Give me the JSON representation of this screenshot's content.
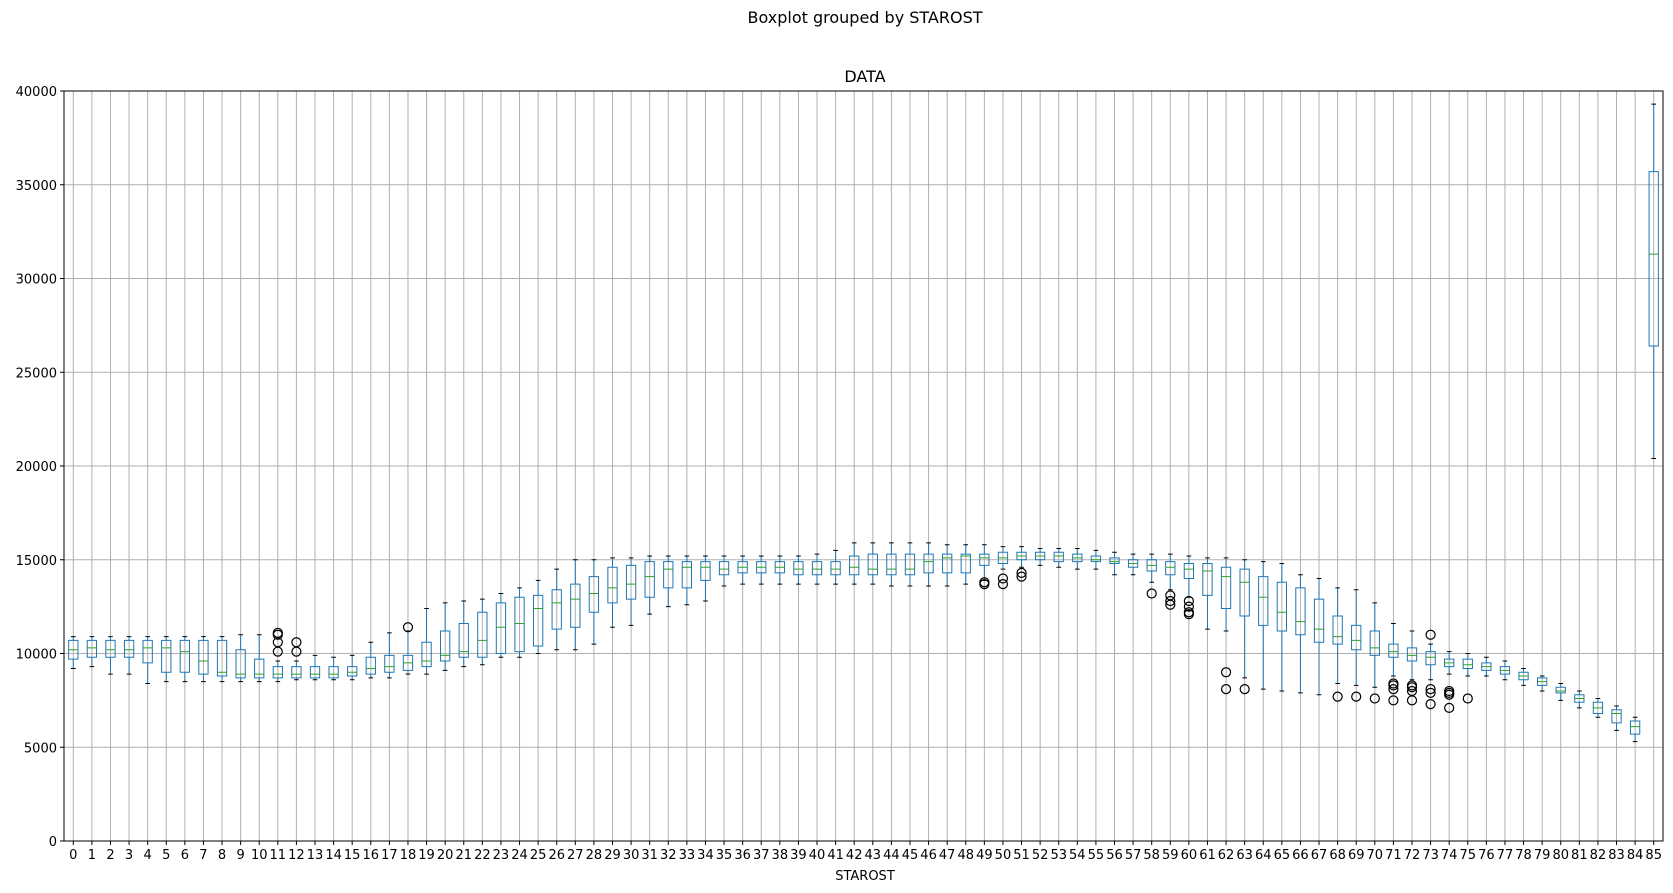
{
  "chart_data": {
    "type": "boxplot",
    "suptitle": "Boxplot grouped by STAROST",
    "title": "DATA",
    "xlabel": "STAROST",
    "ylabel": "",
    "ylim": [
      0,
      40000
    ],
    "yticks": [
      0,
      5000,
      10000,
      15000,
      20000,
      25000,
      30000,
      35000,
      40000
    ],
    "grid": true,
    "colors": {
      "box": "#1f77b4",
      "median": "#2ca02c",
      "grid": "#b0b0b0",
      "whisker": "#1f77b4",
      "flier": "#000000"
    },
    "categories": [
      "0",
      "1",
      "2",
      "3",
      "4",
      "5",
      "6",
      "7",
      "8",
      "9",
      "10",
      "11",
      "12",
      "13",
      "14",
      "15",
      "16",
      "17",
      "18",
      "19",
      "20",
      "21",
      "22",
      "23",
      "24",
      "25",
      "26",
      "27",
      "28",
      "29",
      "30",
      "31",
      "32",
      "33",
      "34",
      "35",
      "36",
      "37",
      "38",
      "39",
      "40",
      "41",
      "42",
      "43",
      "44",
      "45",
      "46",
      "47",
      "48",
      "49",
      "50",
      "51",
      "52",
      "53",
      "54",
      "55",
      "56",
      "57",
      "58",
      "59",
      "60",
      "61",
      "62",
      "63",
      "64",
      "65",
      "66",
      "67",
      "68",
      "69",
      "70",
      "71",
      "72",
      "73",
      "74",
      "75",
      "76",
      "77",
      "78",
      "79",
      "80",
      "81",
      "82",
      "83",
      "84",
      "85"
    ],
    "boxes": [
      {
        "whislo": 9200,
        "q1": 9700,
        "med": 10200,
        "q3": 10700,
        "whishi": 10900,
        "fliers": []
      },
      {
        "whislo": 9300,
        "q1": 9800,
        "med": 10300,
        "q3": 10700,
        "whishi": 10900,
        "fliers": []
      },
      {
        "whislo": 8900,
        "q1": 9800,
        "med": 10200,
        "q3": 10700,
        "whishi": 10900,
        "fliers": []
      },
      {
        "whislo": 8900,
        "q1": 9800,
        "med": 10200,
        "q3": 10700,
        "whishi": 10900,
        "fliers": []
      },
      {
        "whislo": 8400,
        "q1": 9500,
        "med": 10300,
        "q3": 10700,
        "whishi": 10900,
        "fliers": []
      },
      {
        "whislo": 8500,
        "q1": 9000,
        "med": 10300,
        "q3": 10700,
        "whishi": 10900,
        "fliers": []
      },
      {
        "whislo": 8500,
        "q1": 9000,
        "med": 10100,
        "q3": 10700,
        "whishi": 10900,
        "fliers": []
      },
      {
        "whislo": 8500,
        "q1": 8900,
        "med": 9600,
        "q3": 10700,
        "whishi": 10900,
        "fliers": []
      },
      {
        "whislo": 8500,
        "q1": 8800,
        "med": 9000,
        "q3": 10700,
        "whishi": 10900,
        "fliers": []
      },
      {
        "whislo": 8500,
        "q1": 8700,
        "med": 8900,
        "q3": 10200,
        "whishi": 11000,
        "fliers": []
      },
      {
        "whislo": 8500,
        "q1": 8700,
        "med": 8900,
        "q3": 9700,
        "whishi": 11000,
        "fliers": []
      },
      {
        "whislo": 8500,
        "q1": 8700,
        "med": 8900,
        "q3": 9300,
        "whishi": 9600,
        "fliers": [
          10100,
          10600,
          11000,
          11100
        ]
      },
      {
        "whislo": 8600,
        "q1": 8700,
        "med": 8900,
        "q3": 9300,
        "whishi": 9600,
        "fliers": [
          10100,
          10600
        ]
      },
      {
        "whislo": 8600,
        "q1": 8700,
        "med": 8900,
        "q3": 9300,
        "whishi": 9900,
        "fliers": []
      },
      {
        "whislo": 8600,
        "q1": 8700,
        "med": 8900,
        "q3": 9300,
        "whishi": 9800,
        "fliers": []
      },
      {
        "whislo": 8600,
        "q1": 8800,
        "med": 9000,
        "q3": 9300,
        "whishi": 9900,
        "fliers": []
      },
      {
        "whislo": 8700,
        "q1": 8900,
        "med": 9200,
        "q3": 9800,
        "whishi": 10600,
        "fliers": []
      },
      {
        "whislo": 8700,
        "q1": 9000,
        "med": 9300,
        "q3": 9900,
        "whishi": 11100,
        "fliers": []
      },
      {
        "whislo": 8900,
        "q1": 9100,
        "med": 9500,
        "q3": 9900,
        "whishi": 11200,
        "fliers": [
          11400
        ]
      },
      {
        "whislo": 8900,
        "q1": 9300,
        "med": 9600,
        "q3": 10600,
        "whishi": 12400,
        "fliers": []
      },
      {
        "whislo": 9100,
        "q1": 9600,
        "med": 9900,
        "q3": 11200,
        "whishi": 12700,
        "fliers": []
      },
      {
        "whislo": 9300,
        "q1": 9800,
        "med": 10100,
        "q3": 11600,
        "whishi": 12800,
        "fliers": []
      },
      {
        "whislo": 9400,
        "q1": 9800,
        "med": 10700,
        "q3": 12200,
        "whishi": 12900,
        "fliers": []
      },
      {
        "whislo": 9800,
        "q1": 10000,
        "med": 11400,
        "q3": 12700,
        "whishi": 13200,
        "fliers": []
      },
      {
        "whislo": 9800,
        "q1": 10100,
        "med": 11600,
        "q3": 13000,
        "whishi": 13500,
        "fliers": []
      },
      {
        "whislo": 10000,
        "q1": 10400,
        "med": 12400,
        "q3": 13100,
        "whishi": 13900,
        "fliers": []
      },
      {
        "whislo": 10200,
        "q1": 11300,
        "med": 12700,
        "q3": 13400,
        "whishi": 14500,
        "fliers": []
      },
      {
        "whislo": 10200,
        "q1": 11400,
        "med": 12900,
        "q3": 13700,
        "whishi": 15000,
        "fliers": []
      },
      {
        "whislo": 10500,
        "q1": 12200,
        "med": 13200,
        "q3": 14100,
        "whishi": 15000,
        "fliers": []
      },
      {
        "whislo": 11400,
        "q1": 12700,
        "med": 13500,
        "q3": 14600,
        "whishi": 15100,
        "fliers": []
      },
      {
        "whislo": 11500,
        "q1": 12900,
        "med": 13700,
        "q3": 14700,
        "whishi": 15100,
        "fliers": []
      },
      {
        "whislo": 12100,
        "q1": 13000,
        "med": 14100,
        "q3": 14900,
        "whishi": 15200,
        "fliers": []
      },
      {
        "whislo": 12500,
        "q1": 13500,
        "med": 14500,
        "q3": 14900,
        "whishi": 15200,
        "fliers": []
      },
      {
        "whislo": 12600,
        "q1": 13500,
        "med": 14600,
        "q3": 14900,
        "whishi": 15200,
        "fliers": []
      },
      {
        "whislo": 12800,
        "q1": 13900,
        "med": 14600,
        "q3": 14900,
        "whishi": 15200,
        "fliers": []
      },
      {
        "whislo": 13600,
        "q1": 14200,
        "med": 14500,
        "q3": 14900,
        "whishi": 15200,
        "fliers": []
      },
      {
        "whislo": 13700,
        "q1": 14300,
        "med": 14600,
        "q3": 14900,
        "whishi": 15200,
        "fliers": []
      },
      {
        "whislo": 13700,
        "q1": 14300,
        "med": 14600,
        "q3": 14900,
        "whishi": 15200,
        "fliers": []
      },
      {
        "whislo": 13700,
        "q1": 14300,
        "med": 14600,
        "q3": 14900,
        "whishi": 15200,
        "fliers": []
      },
      {
        "whislo": 13700,
        "q1": 14200,
        "med": 14500,
        "q3": 14900,
        "whishi": 15200,
        "fliers": []
      },
      {
        "whislo": 13700,
        "q1": 14200,
        "med": 14500,
        "q3": 14900,
        "whishi": 15300,
        "fliers": []
      },
      {
        "whislo": 13700,
        "q1": 14200,
        "med": 14500,
        "q3": 14900,
        "whishi": 15500,
        "fliers": []
      },
      {
        "whislo": 13700,
        "q1": 14200,
        "med": 14600,
        "q3": 15200,
        "whishi": 15900,
        "fliers": []
      },
      {
        "whislo": 13700,
        "q1": 14200,
        "med": 14500,
        "q3": 15300,
        "whishi": 15900,
        "fliers": []
      },
      {
        "whislo": 13600,
        "q1": 14200,
        "med": 14500,
        "q3": 15300,
        "whishi": 15900,
        "fliers": []
      },
      {
        "whislo": 13600,
        "q1": 14200,
        "med": 14500,
        "q3": 15300,
        "whishi": 15900,
        "fliers": []
      },
      {
        "whislo": 13600,
        "q1": 14300,
        "med": 14900,
        "q3": 15300,
        "whishi": 15900,
        "fliers": []
      },
      {
        "whislo": 13600,
        "q1": 14300,
        "med": 15100,
        "q3": 15300,
        "whishi": 15800,
        "fliers": []
      },
      {
        "whislo": 13700,
        "q1": 14300,
        "med": 15200,
        "q3": 15300,
        "whishi": 15800,
        "fliers": []
      },
      {
        "whislo": 13900,
        "q1": 14700,
        "med": 15100,
        "q3": 15300,
        "whishi": 15800,
        "fliers": [
          13700,
          13800
        ]
      },
      {
        "whislo": 14500,
        "q1": 14800,
        "med": 15100,
        "q3": 15400,
        "whishi": 15700,
        "fliers": [
          13700,
          14000
        ]
      },
      {
        "whislo": 14600,
        "q1": 15000,
        "med": 15200,
        "q3": 15400,
        "whishi": 15700,
        "fliers": [
          14100,
          14300
        ]
      },
      {
        "whislo": 14700,
        "q1": 15000,
        "med": 15200,
        "q3": 15400,
        "whishi": 15600,
        "fliers": []
      },
      {
        "whislo": 14600,
        "q1": 14900,
        "med": 15200,
        "q3": 15400,
        "whishi": 15600,
        "fliers": []
      },
      {
        "whislo": 14500,
        "q1": 14900,
        "med": 15100,
        "q3": 15300,
        "whishi": 15600,
        "fliers": []
      },
      {
        "whislo": 14500,
        "q1": 14900,
        "med": 15000,
        "q3": 15200,
        "whishi": 15500,
        "fliers": []
      },
      {
        "whislo": 14200,
        "q1": 14800,
        "med": 14900,
        "q3": 15100,
        "whishi": 15400,
        "fliers": []
      },
      {
        "whislo": 14200,
        "q1": 14600,
        "med": 14800,
        "q3": 15000,
        "whishi": 15300,
        "fliers": []
      },
      {
        "whislo": 13800,
        "q1": 14400,
        "med": 14700,
        "q3": 15000,
        "whishi": 15300,
        "fliers": [
          13200
        ]
      },
      {
        "whislo": 13400,
        "q1": 14200,
        "med": 14600,
        "q3": 14900,
        "whishi": 15300,
        "fliers": [
          12600,
          12800,
          13100
        ]
      },
      {
        "whislo": 13000,
        "q1": 14000,
        "med": 14500,
        "q3": 14800,
        "whishi": 15200,
        "fliers": [
          12100,
          12200,
          12500,
          12800
        ]
      },
      {
        "whislo": 11300,
        "q1": 13100,
        "med": 14400,
        "q3": 14800,
        "whishi": 15100,
        "fliers": []
      },
      {
        "whislo": 11200,
        "q1": 12400,
        "med": 14100,
        "q3": 14600,
        "whishi": 15100,
        "fliers": [
          8100,
          9000
        ]
      },
      {
        "whislo": 8700,
        "q1": 12000,
        "med": 13800,
        "q3": 14500,
        "whishi": 15000,
        "fliers": [
          8100
        ]
      },
      {
        "whislo": 8100,
        "q1": 11500,
        "med": 13000,
        "q3": 14100,
        "whishi": 14900,
        "fliers": []
      },
      {
        "whislo": 8000,
        "q1": 11200,
        "med": 12200,
        "q3": 13800,
        "whishi": 14800,
        "fliers": []
      },
      {
        "whislo": 7900,
        "q1": 11000,
        "med": 11700,
        "q3": 13500,
        "whishi": 14200,
        "fliers": []
      },
      {
        "whislo": 7800,
        "q1": 10600,
        "med": 11300,
        "q3": 12900,
        "whishi": 14000,
        "fliers": []
      },
      {
        "whislo": 8400,
        "q1": 10500,
        "med": 10900,
        "q3": 12000,
        "whishi": 13500,
        "fliers": [
          7700
        ]
      },
      {
        "whislo": 8300,
        "q1": 10200,
        "med": 10700,
        "q3": 11500,
        "whishi": 13400,
        "fliers": [
          7700
        ]
      },
      {
        "whislo": 8200,
        "q1": 9900,
        "med": 10300,
        "q3": 11200,
        "whishi": 12700,
        "fliers": [
          7600
        ]
      },
      {
        "whislo": 8800,
        "q1": 9800,
        "med": 10100,
        "q3": 10500,
        "whishi": 11600,
        "fliers": [
          7500,
          8100,
          8300,
          8400
        ]
      },
      {
        "whislo": 8600,
        "q1": 9600,
        "med": 9900,
        "q3": 10300,
        "whishi": 11200,
        "fliers": [
          7500,
          8000,
          8200,
          8300
        ]
      },
      {
        "whislo": 8600,
        "q1": 9400,
        "med": 9800,
        "q3": 10100,
        "whishi": 10500,
        "fliers": [
          7300,
          7900,
          8100,
          11000
        ]
      },
      {
        "whislo": 8900,
        "q1": 9300,
        "med": 9500,
        "q3": 9700,
        "whishi": 10100,
        "fliers": [
          7100,
          7800,
          7900,
          8000
        ]
      },
      {
        "whislo": 8800,
        "q1": 9200,
        "med": 9400,
        "q3": 9700,
        "whishi": 10000,
        "fliers": [
          7600
        ]
      },
      {
        "whislo": 8800,
        "q1": 9100,
        "med": 9300,
        "q3": 9500,
        "whishi": 9800,
        "fliers": []
      },
      {
        "whislo": 8600,
        "q1": 8900,
        "med": 9100,
        "q3": 9300,
        "whishi": 9600,
        "fliers": []
      },
      {
        "whislo": 8300,
        "q1": 8600,
        "med": 8800,
        "q3": 9000,
        "whishi": 9200,
        "fliers": []
      },
      {
        "whislo": 8000,
        "q1": 8300,
        "med": 8500,
        "q3": 8700,
        "whishi": 8800,
        "fliers": []
      },
      {
        "whislo": 7500,
        "q1": 7900,
        "med": 8000,
        "q3": 8200,
        "whishi": 8400,
        "fliers": []
      },
      {
        "whislo": 7100,
        "q1": 7400,
        "med": 7600,
        "q3": 7800,
        "whishi": 8000,
        "fliers": []
      },
      {
        "whislo": 6600,
        "q1": 6800,
        "med": 7100,
        "q3": 7400,
        "whishi": 7600,
        "fliers": []
      },
      {
        "whislo": 5900,
        "q1": 6300,
        "med": 6800,
        "q3": 7000,
        "whishi": 7200,
        "fliers": []
      },
      {
        "whislo": 5300,
        "q1": 5700,
        "med": 6100,
        "q3": 6400,
        "whishi": 6600,
        "fliers": []
      },
      {
        "whislo": 20400,
        "q1": 26400,
        "med": 31300,
        "q3": 35700,
        "whishi": 39300,
        "fliers": []
      }
    ]
  }
}
